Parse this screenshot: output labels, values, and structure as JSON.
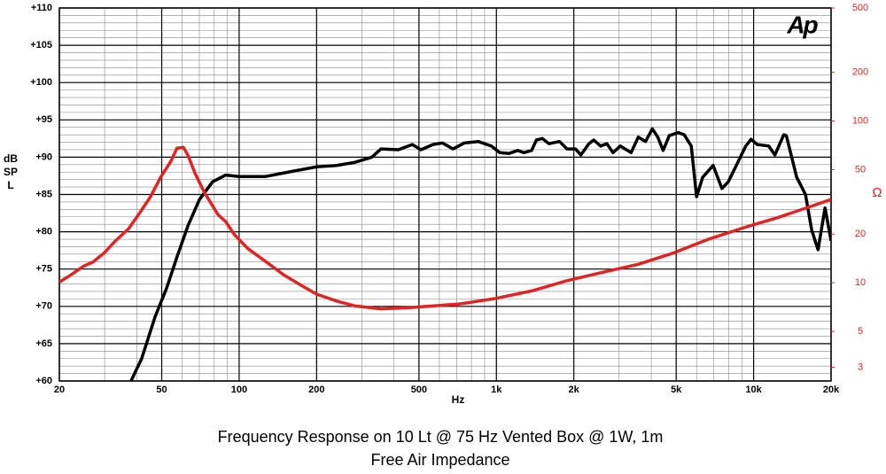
{
  "chart_data": {
    "type": "line",
    "title": "Frequency Response on 10 Lt @ 75 Hz Vented Box @ 1W, 1m",
    "subtitle": "Free Air Impedance",
    "x_label": "Hz",
    "y_label": "dB SPL",
    "y2_label": "Ω",
    "logo": "Ap",
    "xlog": true,
    "y2log": true,
    "grid": true,
    "xlim": [
      20,
      20000
    ],
    "xticks": [
      20,
      50,
      100,
      200,
      500,
      {
        "value": 1000,
        "label": "1k"
      },
      {
        "value": 2000,
        "label": "2k"
      },
      {
        "value": 5000,
        "label": "5k"
      },
      {
        "value": 10000,
        "label": "10k"
      },
      {
        "value": 20000,
        "label": "20k"
      }
    ],
    "ylim": [
      60,
      110
    ],
    "yticks": [
      {
        "value": 60,
        "label": "+60"
      },
      {
        "value": 65,
        "label": "+65"
      },
      {
        "value": 70,
        "label": "+70"
      },
      {
        "value": 75,
        "label": "+75"
      },
      {
        "value": 80,
        "label": "+80"
      },
      {
        "value": 85,
        "label": "+85"
      },
      {
        "value": 90,
        "label": "+90"
      },
      {
        "value": 95,
        "label": "+95"
      },
      {
        "value": 100,
        "label": "+100"
      },
      {
        "value": 105,
        "label": "+105"
      },
      {
        "value": 110,
        "label": "+110"
      }
    ],
    "y2lim": [
      2.47,
      500
    ],
    "y2ticks": [
      3,
      5,
      10,
      20,
      50,
      100,
      200,
      500
    ],
    "series": [
      {
        "color": "#000000",
        "axis": "y",
        "x": [
          38,
          41.8,
          47.1,
          52.3,
          57.3,
          63.2,
          70,
          78.8,
          88.6,
          100,
          126,
          161,
          200,
          240,
          281,
          328,
          356,
          416,
          471,
          509,
          567,
          617,
          678,
          750,
          850,
          955,
          1030,
          1120,
          1210,
          1280,
          1370,
          1430,
          1510,
          1600,
          1760,
          1880,
          2030,
          2130,
          2290,
          2390,
          2540,
          2690,
          2840,
          3030,
          3340,
          3560,
          3800,
          4040,
          4240,
          4450,
          4700,
          5100,
          5370,
          5720,
          6000,
          6340,
          6960,
          7530,
          7970,
          8620,
          9320,
          9770,
          10340,
          11440,
          12100,
          13100,
          13400,
          14700,
          15900,
          16830,
          17800,
          18950,
          20000
        ],
        "values": [
          60,
          63,
          68.6,
          72.5,
          76.6,
          80.8,
          84.3,
          86.7,
          87.6,
          87.4,
          87.4,
          88.1,
          88.7,
          88.9,
          89.3,
          90,
          91.1,
          91,
          91.7,
          91,
          91.7,
          91.9,
          91.1,
          91.9,
          92.1,
          91.5,
          90.6,
          90.5,
          90.9,
          90.6,
          90.9,
          92.3,
          92.5,
          91.8,
          92.1,
          91.1,
          91.1,
          90.3,
          91.8,
          92.3,
          91.5,
          91.8,
          90.6,
          91.5,
          90.6,
          92.7,
          92.1,
          93.8,
          92.7,
          90.9,
          92.9,
          93.3,
          93,
          91.5,
          84.7,
          87.3,
          88.9,
          85.8,
          86.7,
          89.1,
          91.5,
          92.4,
          91.7,
          91.5,
          90.3,
          93,
          92.9,
          87.3,
          85,
          80.2,
          77.6,
          83.2,
          78.8
        ]
      },
      {
        "color": "#e02424",
        "axis": "y2",
        "x": [
          20,
          22.2,
          24.9,
          27,
          29.9,
          33,
          37.2,
          41.1,
          45.2,
          49.5,
          54.3,
          57.3,
          60.7,
          63.2,
          67.3,
          73.2,
          82.7,
          88.6,
          95.9,
          108,
          127,
          149,
          175,
          200,
          240,
          281,
          356,
          451,
          570,
          723,
          995,
          1370,
          1880,
          2580,
          3560,
          4890,
          6690,
          9160,
          12540,
          15900,
          20000
        ],
        "values": [
          10.1,
          11.2,
          12.7,
          13.4,
          15.3,
          18.1,
          21.6,
          27.1,
          34,
          44.9,
          56.4,
          68,
          68.8,
          61.5,
          47.7,
          36.2,
          26.4,
          23.9,
          19.8,
          16.3,
          13.5,
          11.2,
          9.6,
          8.5,
          7.7,
          7.2,
          6.9,
          7,
          7.2,
          7.4,
          8,
          8.9,
          10.3,
          11.6,
          13,
          15.3,
          18.6,
          21.9,
          25.4,
          28.9,
          32.7
        ]
      }
    ]
  }
}
